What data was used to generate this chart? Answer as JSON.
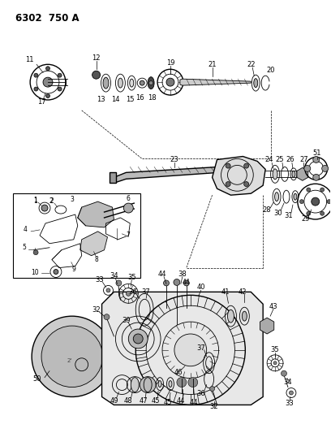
{
  "title": "6302  750 A",
  "bg_color": "#ffffff",
  "line_color": "#1a1a1a",
  "fig_width": 4.08,
  "fig_height": 5.33,
  "dpi": 100
}
